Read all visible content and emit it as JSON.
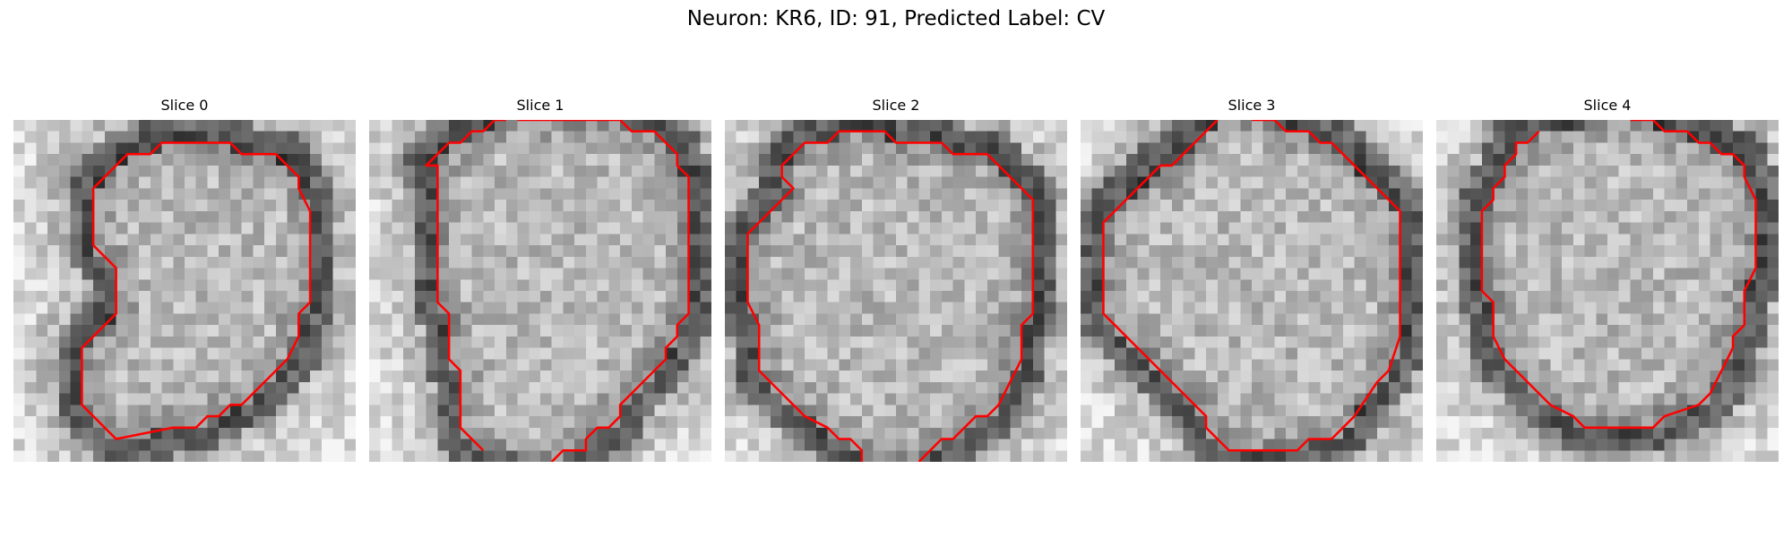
{
  "figure": {
    "title": "Neuron: KR6, ID: 91, Predicted Label: CV"
  },
  "colors": {
    "contour": "#ff0000",
    "background": "#ffffff"
  },
  "image": {
    "colormap": "grayscale",
    "resolution": [
      30,
      30
    ]
  },
  "slices": [
    {
      "label": "Slice 0",
      "contour": [
        [
          14,
          2
        ],
        [
          19,
          2
        ],
        [
          20,
          3
        ],
        [
          23,
          3
        ],
        [
          25,
          5
        ],
        [
          25,
          6
        ],
        [
          26,
          8
        ],
        [
          26,
          10
        ],
        [
          26,
          13
        ],
        [
          26,
          16
        ],
        [
          25,
          17
        ],
        [
          25,
          19
        ],
        [
          24,
          21
        ],
        [
          23,
          22
        ],
        [
          22,
          23
        ],
        [
          20,
          25
        ],
        [
          19,
          25
        ],
        [
          18,
          26
        ],
        [
          17,
          26
        ],
        [
          16,
          27
        ],
        [
          14,
          27
        ],
        [
          9,
          28
        ],
        [
          6,
          25
        ],
        [
          6,
          20
        ],
        [
          9,
          17
        ],
        [
          9,
          13
        ],
        [
          8,
          12
        ],
        [
          7,
          11
        ],
        [
          7,
          6
        ],
        [
          8,
          5
        ],
        [
          10,
          3
        ],
        [
          11,
          3
        ],
        [
          12,
          3
        ],
        [
          13,
          2
        ]
      ]
    },
    {
      "label": "Slice 1",
      "open": true,
      "contour": [
        [
          10,
          29
        ],
        [
          8,
          27
        ],
        [
          8,
          22
        ],
        [
          7,
          21
        ],
        [
          7,
          17
        ],
        [
          6,
          16
        ],
        [
          6,
          4
        ],
        [
          5,
          4
        ],
        [
          6,
          3
        ],
        [
          7,
          2
        ],
        [
          8,
          2
        ],
        [
          9,
          1
        ],
        [
          10,
          1
        ],
        [
          11,
          0
        ],
        [
          12,
          0
        ]
      ],
      "contour2": [
        [
          13,
          0
        ],
        [
          22,
          0
        ],
        [
          23,
          1
        ],
        [
          25,
          1
        ],
        [
          27,
          3
        ],
        [
          27,
          4
        ],
        [
          28,
          5
        ],
        [
          28,
          14
        ],
        [
          28,
          17
        ],
        [
          27,
          18
        ],
        [
          27,
          19
        ],
        [
          26,
          20
        ],
        [
          26,
          21
        ],
        [
          25,
          22
        ],
        [
          24,
          23
        ],
        [
          23,
          24
        ],
        [
          22,
          25
        ],
        [
          22,
          26
        ],
        [
          21,
          27
        ],
        [
          20,
          27
        ],
        [
          19,
          28
        ],
        [
          19,
          29
        ],
        [
          17,
          29
        ],
        [
          16,
          30
        ]
      ]
    },
    {
      "label": "Slice 2",
      "open": true,
      "contour": [
        [
          12,
          30
        ],
        [
          12,
          29
        ],
        [
          11,
          28
        ],
        [
          10,
          28
        ],
        [
          9,
          27
        ],
        [
          7,
          26
        ],
        [
          6,
          25
        ],
        [
          5,
          24
        ],
        [
          4,
          23
        ],
        [
          3,
          22
        ],
        [
          3,
          18
        ],
        [
          2,
          16
        ],
        [
          2,
          10
        ],
        [
          3,
          9
        ],
        [
          4,
          8
        ],
        [
          5,
          7
        ],
        [
          6,
          6
        ],
        [
          5,
          5
        ],
        [
          5,
          4
        ],
        [
          6,
          3
        ],
        [
          7,
          2
        ],
        [
          9,
          2
        ],
        [
          10,
          1
        ],
        [
          14,
          1
        ],
        [
          15,
          2
        ],
        [
          19,
          2
        ],
        [
          20,
          3
        ],
        [
          23,
          3
        ],
        [
          24,
          4
        ],
        [
          25,
          5
        ],
        [
          26,
          6
        ],
        [
          27,
          7
        ],
        [
          27,
          15
        ],
        [
          27,
          17
        ],
        [
          26,
          18
        ],
        [
          26,
          21
        ],
        [
          25,
          23
        ],
        [
          24,
          25
        ],
        [
          23,
          26
        ],
        [
          22,
          26
        ],
        [
          21,
          27
        ],
        [
          20,
          28
        ],
        [
          19,
          28
        ],
        [
          18,
          29
        ],
        [
          17,
          30
        ]
      ]
    },
    {
      "label": "Slice 3",
      "open": true,
      "contour": [
        [
          12,
          0
        ],
        [
          11,
          1
        ],
        [
          10,
          2
        ],
        [
          9,
          3
        ],
        [
          8,
          4
        ],
        [
          7,
          4
        ],
        [
          6,
          5
        ],
        [
          5,
          6
        ],
        [
          4,
          7
        ],
        [
          3,
          8
        ],
        [
          2,
          9
        ],
        [
          2,
          17
        ],
        [
          3,
          18
        ],
        [
          4,
          19
        ],
        [
          5,
          20
        ],
        [
          6,
          21
        ],
        [
          7,
          22
        ],
        [
          8,
          23
        ],
        [
          9,
          24
        ],
        [
          10,
          25
        ],
        [
          11,
          26
        ],
        [
          11,
          27
        ],
        [
          12,
          28
        ],
        [
          13,
          29
        ],
        [
          19,
          29
        ],
        [
          20,
          28
        ],
        [
          22,
          28
        ],
        [
          23,
          27
        ],
        [
          24,
          26
        ],
        [
          26,
          23
        ],
        [
          27,
          22
        ],
        [
          28,
          19
        ],
        [
          28,
          8
        ],
        [
          27,
          7
        ],
        [
          26,
          6
        ],
        [
          25,
          5
        ],
        [
          24,
          4
        ],
        [
          23,
          3
        ],
        [
          22,
          2
        ],
        [
          21,
          2
        ],
        [
          20,
          1
        ],
        [
          18,
          1
        ],
        [
          17,
          0
        ],
        [
          15,
          0
        ]
      ]
    },
    {
      "label": "Slice 4",
      "open": true,
      "contour": [
        [
          9,
          1
        ],
        [
          8,
          2
        ],
        [
          7,
          2
        ],
        [
          7,
          3
        ],
        [
          6,
          4
        ],
        [
          6,
          5
        ],
        [
          5,
          6
        ],
        [
          5,
          7
        ],
        [
          4,
          8
        ],
        [
          4,
          15
        ],
        [
          5,
          16
        ],
        [
          5,
          19
        ],
        [
          6,
          21
        ],
        [
          7,
          22
        ],
        [
          9,
          24
        ],
        [
          10,
          25
        ],
        [
          12,
          26
        ],
        [
          13,
          27
        ],
        [
          19,
          27
        ],
        [
          20,
          26
        ],
        [
          23,
          25
        ],
        [
          24,
          24
        ],
        [
          25,
          22
        ],
        [
          26,
          20
        ],
        [
          26,
          19
        ],
        [
          27,
          18
        ],
        [
          27,
          15
        ],
        [
          28,
          13
        ],
        [
          28,
          7
        ],
        [
          27,
          5
        ],
        [
          27,
          4
        ],
        [
          26,
          3
        ],
        [
          25,
          3
        ],
        [
          24,
          2
        ],
        [
          23,
          2
        ],
        [
          22,
          1
        ],
        [
          20,
          1
        ],
        [
          19,
          0
        ],
        [
          17,
          0
        ]
      ]
    }
  ]
}
